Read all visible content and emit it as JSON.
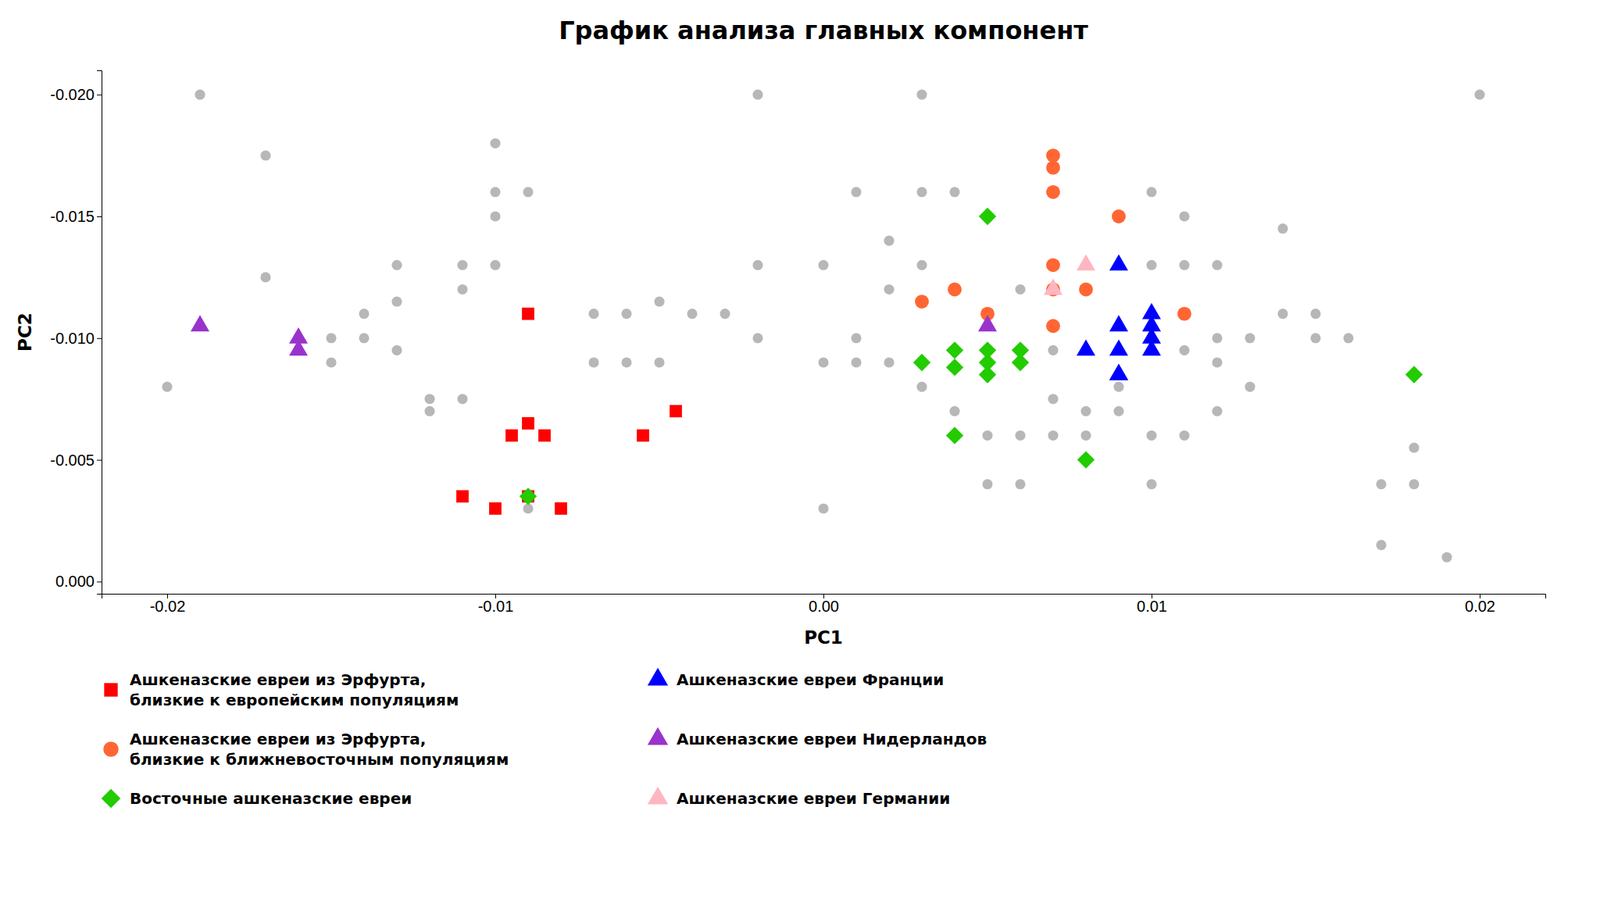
{
  "chart_data": {
    "type": "scatter",
    "title": "График анализа главных компонент",
    "xlabel": "PC1",
    "ylabel": "PC2",
    "xlim": [
      -0.022,
      0.022
    ],
    "ylim": [
      0.0005,
      -0.021
    ],
    "xticks": [
      -0.02,
      -0.01,
      {
        "value": 0,
        "label": "0.00"
      },
      0.01,
      0.02
    ],
    "yticks": [
      {
        "value": 0,
        "label": "0.000"
      },
      -0.005,
      {
        "value": -0.01,
        "label": "-0.010"
      },
      -0.015,
      {
        "value": -0.02,
        "label": "-0.020"
      }
    ],
    "grid": false,
    "legend": "bottom",
    "series": [
      {
        "color": "#AAAAAA",
        "marker": "circle",
        "x": [
          -0.02,
          -0.017,
          -0.017,
          -0.019,
          -0.015,
          -0.015,
          -0.014,
          -0.014,
          -0.013,
          -0.013,
          -0.013,
          -0.012,
          -0.012,
          -0.011,
          -0.011,
          -0.011,
          -0.01,
          -0.01,
          -0.01,
          -0.01,
          -0.009,
          -0.009,
          -0.007,
          -0.007,
          -0.006,
          -0.006,
          -0.005,
          -0.005,
          -0.004,
          -0.003,
          -0.002,
          -0.002,
          -0.002,
          0,
          0,
          0,
          0.001,
          0.001,
          0.001,
          0.002,
          0.002,
          0.002,
          0.003,
          0.003,
          0.003,
          0.003,
          0.004,
          0.004,
          0.004,
          0.005,
          0.005,
          0.006,
          0.006,
          0.006,
          0.007,
          0.007,
          0.007,
          0.008,
          0.008,
          0.009,
          0.009,
          0.01,
          0.01,
          0.01,
          0.01,
          0.011,
          0.011,
          0.011,
          0.011,
          0.012,
          0.012,
          0.012,
          0.012,
          0.013,
          0.013,
          0.014,
          0.014,
          0.015,
          0.015,
          0.016,
          0.017,
          0.017,
          0.018,
          0.018,
          0.019,
          0.02
        ],
        "values": [
          -0.008,
          -0.0125,
          -0.0175,
          -0.02,
          -0.009,
          -0.01,
          -0.01,
          -0.011,
          -0.0095,
          -0.0115,
          -0.013,
          -0.007,
          -0.0075,
          -0.0075,
          -0.012,
          -0.013,
          -0.013,
          -0.015,
          -0.016,
          -0.018,
          -0.003,
          -0.016,
          -0.009,
          -0.011,
          -0.009,
          -0.011,
          -0.009,
          -0.0115,
          -0.011,
          -0.011,
          -0.01,
          -0.013,
          -0.02,
          -0.003,
          -0.009,
          -0.013,
          -0.009,
          -0.01,
          -0.016,
          -0.009,
          -0.012,
          -0.014,
          -0.008,
          -0.013,
          -0.016,
          -0.02,
          -0.007,
          -0.012,
          -0.016,
          -0.004,
          -0.006,
          -0.004,
          -0.006,
          -0.012,
          -0.006,
          -0.0075,
          -0.0095,
          -0.006,
          -0.007,
          -0.007,
          -0.008,
          -0.004,
          -0.006,
          -0.013,
          -0.016,
          -0.006,
          -0.0095,
          -0.013,
          -0.015,
          -0.007,
          -0.009,
          -0.01,
          -0.013,
          -0.008,
          -0.01,
          -0.011,
          -0.0145,
          -0.01,
          -0.011,
          -0.01,
          -0.0015,
          -0.004,
          -0.004,
          -0.0055,
          -0.001,
          -0.02
        ]
      },
      {
        "name": "Ашкеназские евреи из Эрфурта,\nблизкие к европейским популяциям",
        "color": "#FF0000",
        "marker": "square",
        "x": [
          -0.011,
          -0.01,
          -0.009,
          -0.0095,
          -0.0085,
          -0.009,
          -0.0055,
          -0.009,
          -0.0045,
          -0.008
        ],
        "values": [
          -0.0035,
          -0.003,
          -0.0035,
          -0.006,
          -0.006,
          -0.0065,
          -0.006,
          -0.011,
          -0.007,
          -0.003
        ]
      },
      {
        "name": "Ашкеназские евреи из Эрфурта,\nблизкие к ближневосточным популяциям",
        "color": "#FF6633",
        "marker": "circle",
        "x": [
          0.003,
          0.004,
          0.005,
          0.007,
          0.007,
          0.007,
          0.008,
          0.007,
          0.007,
          0.007,
          0.009,
          0.011
        ],
        "values": [
          -0.0115,
          -0.012,
          -0.011,
          -0.0105,
          -0.012,
          -0.013,
          -0.012,
          -0.016,
          -0.017,
          -0.0175,
          -0.015,
          -0.011
        ]
      },
      {
        "name": "Восточные ашкеназские евреи",
        "color": "#22CC00",
        "marker": "diamond",
        "x": [
          -0.009,
          0.004,
          0.005,
          0.005,
          0.004,
          0.003,
          0.004,
          0.006,
          0.005,
          0.006,
          0.005,
          0.018,
          0.008
        ],
        "values": [
          -0.0035,
          -0.006,
          -0.0085,
          -0.009,
          -0.0088,
          -0.009,
          -0.0095,
          -0.009,
          -0.0095,
          -0.0095,
          -0.015,
          -0.0085,
          -0.005
        ]
      },
      {
        "name": "Ашкеназские евреи Франции",
        "color": "#0000FF",
        "marker": "triangle",
        "x": [
          0.009,
          0.009,
          0.009,
          0.01,
          0.01,
          0.01,
          0.01,
          0.009,
          0.009,
          0.008
        ],
        "values": [
          -0.0085,
          -0.0095,
          -0.0105,
          -0.0095,
          -0.01,
          -0.0105,
          -0.011,
          -0.013,
          -0.0085,
          -0.0095
        ]
      },
      {
        "name": "Ашкеназские евреи Нидерландов",
        "color": "#9933CC",
        "marker": "triangle",
        "x": [
          -0.019,
          -0.016,
          -0.016,
          0.005
        ],
        "values": [
          -0.0105,
          -0.0095,
          -0.01,
          -0.0105
        ]
      },
      {
        "name": "Ашкеназские евреи Германии",
        "color": "#FFB6C1",
        "marker": "triangle",
        "x": [
          0.007,
          0.008
        ],
        "values": [
          -0.012,
          -0.013
        ]
      }
    ]
  }
}
